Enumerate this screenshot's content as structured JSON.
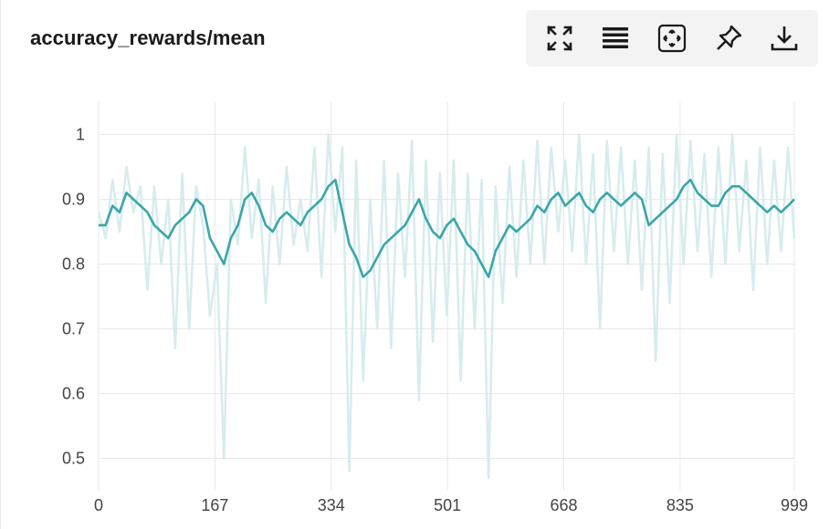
{
  "panel": {
    "title": "accuracy_rewards/mean"
  },
  "toolbar": {
    "icons": [
      "fullscreen-icon",
      "list-icon",
      "fit-to-view-icon",
      "pin-icon",
      "download-icon"
    ]
  },
  "colors": {
    "smoothed": "#3aa6aa",
    "raw": "#d6eced",
    "grid": "#e8e8e8",
    "text": "#444444"
  },
  "chart_data": {
    "type": "line",
    "title": "accuracy_rewards/mean",
    "xlabel": "",
    "ylabel": "",
    "xlim": [
      0,
      999
    ],
    "ylim": [
      0.45,
      1.05
    ],
    "x_ticks": [
      0,
      167,
      334,
      501,
      668,
      835,
      999
    ],
    "x_tick_labels": [
      "0",
      "167",
      "334",
      "501",
      "668",
      "835",
      "999"
    ],
    "y_ticks": [
      0.5,
      0.6,
      0.7,
      0.8,
      0.9,
      1.0
    ],
    "y_tick_labels": [
      "0.5",
      "0.6",
      "0.7",
      "0.8",
      "0.9",
      "1"
    ],
    "grid": true,
    "legend": "none",
    "series": [
      {
        "role": "smoothed",
        "x": [
          0,
          10,
          20,
          30,
          40,
          50,
          60,
          70,
          80,
          90,
          100,
          110,
          120,
          130,
          140,
          150,
          160,
          170,
          180,
          190,
          200,
          210,
          220,
          230,
          240,
          250,
          260,
          270,
          280,
          290,
          300,
          310,
          320,
          330,
          340,
          350,
          360,
          370,
          380,
          390,
          400,
          410,
          420,
          430,
          440,
          450,
          460,
          470,
          480,
          490,
          500,
          510,
          520,
          530,
          540,
          550,
          560,
          570,
          580,
          590,
          600,
          610,
          620,
          630,
          640,
          650,
          660,
          670,
          680,
          690,
          700,
          710,
          720,
          730,
          740,
          750,
          760,
          770,
          780,
          790,
          800,
          810,
          820,
          830,
          840,
          850,
          860,
          870,
          880,
          890,
          900,
          910,
          920,
          930,
          940,
          950,
          960,
          970,
          980,
          990,
          999
        ],
        "y": [
          0.86,
          0.86,
          0.89,
          0.88,
          0.91,
          0.9,
          0.89,
          0.88,
          0.86,
          0.85,
          0.84,
          0.86,
          0.87,
          0.88,
          0.9,
          0.89,
          0.84,
          0.82,
          0.8,
          0.84,
          0.86,
          0.9,
          0.91,
          0.89,
          0.86,
          0.85,
          0.87,
          0.88,
          0.87,
          0.86,
          0.88,
          0.89,
          0.9,
          0.92,
          0.93,
          0.88,
          0.83,
          0.81,
          0.78,
          0.79,
          0.81,
          0.83,
          0.84,
          0.85,
          0.86,
          0.88,
          0.9,
          0.87,
          0.85,
          0.84,
          0.86,
          0.87,
          0.85,
          0.83,
          0.82,
          0.8,
          0.78,
          0.82,
          0.84,
          0.86,
          0.85,
          0.86,
          0.87,
          0.89,
          0.88,
          0.9,
          0.91,
          0.89,
          0.9,
          0.91,
          0.89,
          0.88,
          0.9,
          0.91,
          0.9,
          0.89,
          0.9,
          0.91,
          0.9,
          0.86,
          0.87,
          0.88,
          0.89,
          0.9,
          0.92,
          0.93,
          0.91,
          0.9,
          0.89,
          0.89,
          0.91,
          0.92,
          0.92,
          0.91,
          0.9,
          0.89,
          0.88,
          0.89,
          0.88,
          0.89,
          0.9
        ]
      },
      {
        "role": "raw",
        "x": [
          0,
          10,
          20,
          30,
          40,
          50,
          60,
          70,
          80,
          90,
          100,
          110,
          120,
          130,
          140,
          150,
          160,
          170,
          180,
          190,
          200,
          210,
          220,
          230,
          240,
          250,
          260,
          270,
          280,
          290,
          300,
          310,
          320,
          330,
          340,
          350,
          360,
          370,
          380,
          390,
          400,
          410,
          420,
          430,
          440,
          450,
          460,
          470,
          480,
          490,
          500,
          510,
          520,
          530,
          540,
          550,
          560,
          570,
          580,
          590,
          600,
          610,
          620,
          630,
          640,
          650,
          660,
          670,
          680,
          690,
          700,
          710,
          720,
          730,
          740,
          750,
          760,
          770,
          780,
          790,
          800,
          810,
          820,
          830,
          840,
          850,
          860,
          870,
          880,
          890,
          900,
          910,
          920,
          930,
          940,
          950,
          960,
          970,
          980,
          990,
          999
        ],
        "y": [
          0.88,
          0.84,
          0.93,
          0.85,
          0.95,
          0.88,
          0.92,
          0.76,
          0.92,
          0.8,
          0.9,
          0.67,
          0.94,
          0.7,
          0.92,
          0.86,
          0.72,
          0.8,
          0.5,
          0.9,
          0.83,
          0.98,
          0.84,
          0.93,
          0.74,
          0.92,
          0.8,
          0.95,
          0.83,
          0.9,
          0.82,
          0.98,
          0.78,
          1.0,
          0.85,
          0.98,
          0.48,
          0.96,
          0.62,
          0.9,
          0.7,
          0.96,
          0.67,
          0.94,
          0.78,
          0.99,
          0.59,
          0.96,
          0.68,
          0.94,
          0.72,
          0.96,
          0.62,
          0.94,
          0.7,
          0.93,
          0.47,
          0.92,
          0.74,
          0.95,
          0.78,
          0.96,
          0.8,
          0.99,
          0.8,
          0.98,
          0.85,
          0.96,
          0.82,
          1.0,
          0.8,
          0.97,
          0.7,
          0.99,
          0.82,
          0.98,
          0.8,
          0.96,
          0.76,
          0.98,
          0.65,
          0.97,
          0.74,
          1.0,
          0.8,
          0.99,
          0.82,
          0.97,
          0.78,
          0.98,
          0.8,
          1.0,
          0.82,
          0.96,
          0.76,
          0.98,
          0.8,
          0.96,
          0.82,
          0.98,
          0.84
        ]
      }
    ]
  }
}
